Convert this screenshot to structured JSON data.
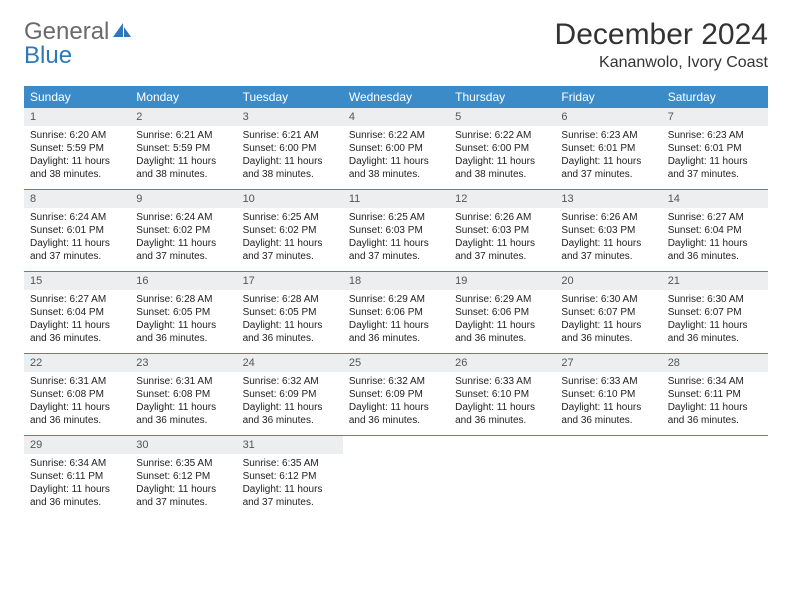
{
  "brand": {
    "part1": "General",
    "part2": "Blue"
  },
  "title": "December 2024",
  "location": "Kananwolo, Ivory Coast",
  "colors": {
    "header_bg": "#3b8bc9",
    "header_fg": "#ffffff",
    "daynum_bg": "#eceeef",
    "row_divider": "#3b8bc9",
    "brand_gray": "#6a6a6a",
    "brand_blue": "#2e77b8"
  },
  "dow": [
    "Sunday",
    "Monday",
    "Tuesday",
    "Wednesday",
    "Thursday",
    "Friday",
    "Saturday"
  ],
  "days": [
    {
      "n": "1",
      "sr": "6:20 AM",
      "ss": "5:59 PM",
      "dl": "11 hours and 38 minutes."
    },
    {
      "n": "2",
      "sr": "6:21 AM",
      "ss": "5:59 PM",
      "dl": "11 hours and 38 minutes."
    },
    {
      "n": "3",
      "sr": "6:21 AM",
      "ss": "6:00 PM",
      "dl": "11 hours and 38 minutes."
    },
    {
      "n": "4",
      "sr": "6:22 AM",
      "ss": "6:00 PM",
      "dl": "11 hours and 38 minutes."
    },
    {
      "n": "5",
      "sr": "6:22 AM",
      "ss": "6:00 PM",
      "dl": "11 hours and 38 minutes."
    },
    {
      "n": "6",
      "sr": "6:23 AM",
      "ss": "6:01 PM",
      "dl": "11 hours and 37 minutes."
    },
    {
      "n": "7",
      "sr": "6:23 AM",
      "ss": "6:01 PM",
      "dl": "11 hours and 37 minutes."
    },
    {
      "n": "8",
      "sr": "6:24 AM",
      "ss": "6:01 PM",
      "dl": "11 hours and 37 minutes."
    },
    {
      "n": "9",
      "sr": "6:24 AM",
      "ss": "6:02 PM",
      "dl": "11 hours and 37 minutes."
    },
    {
      "n": "10",
      "sr": "6:25 AM",
      "ss": "6:02 PM",
      "dl": "11 hours and 37 minutes."
    },
    {
      "n": "11",
      "sr": "6:25 AM",
      "ss": "6:03 PM",
      "dl": "11 hours and 37 minutes."
    },
    {
      "n": "12",
      "sr": "6:26 AM",
      "ss": "6:03 PM",
      "dl": "11 hours and 37 minutes."
    },
    {
      "n": "13",
      "sr": "6:26 AM",
      "ss": "6:03 PM",
      "dl": "11 hours and 37 minutes."
    },
    {
      "n": "14",
      "sr": "6:27 AM",
      "ss": "6:04 PM",
      "dl": "11 hours and 36 minutes."
    },
    {
      "n": "15",
      "sr": "6:27 AM",
      "ss": "6:04 PM",
      "dl": "11 hours and 36 minutes."
    },
    {
      "n": "16",
      "sr": "6:28 AM",
      "ss": "6:05 PM",
      "dl": "11 hours and 36 minutes."
    },
    {
      "n": "17",
      "sr": "6:28 AM",
      "ss": "6:05 PM",
      "dl": "11 hours and 36 minutes."
    },
    {
      "n": "18",
      "sr": "6:29 AM",
      "ss": "6:06 PM",
      "dl": "11 hours and 36 minutes."
    },
    {
      "n": "19",
      "sr": "6:29 AM",
      "ss": "6:06 PM",
      "dl": "11 hours and 36 minutes."
    },
    {
      "n": "20",
      "sr": "6:30 AM",
      "ss": "6:07 PM",
      "dl": "11 hours and 36 minutes."
    },
    {
      "n": "21",
      "sr": "6:30 AM",
      "ss": "6:07 PM",
      "dl": "11 hours and 36 minutes."
    },
    {
      "n": "22",
      "sr": "6:31 AM",
      "ss": "6:08 PM",
      "dl": "11 hours and 36 minutes."
    },
    {
      "n": "23",
      "sr": "6:31 AM",
      "ss": "6:08 PM",
      "dl": "11 hours and 36 minutes."
    },
    {
      "n": "24",
      "sr": "6:32 AM",
      "ss": "6:09 PM",
      "dl": "11 hours and 36 minutes."
    },
    {
      "n": "25",
      "sr": "6:32 AM",
      "ss": "6:09 PM",
      "dl": "11 hours and 36 minutes."
    },
    {
      "n": "26",
      "sr": "6:33 AM",
      "ss": "6:10 PM",
      "dl": "11 hours and 36 minutes."
    },
    {
      "n": "27",
      "sr": "6:33 AM",
      "ss": "6:10 PM",
      "dl": "11 hours and 36 minutes."
    },
    {
      "n": "28",
      "sr": "6:34 AM",
      "ss": "6:11 PM",
      "dl": "11 hours and 36 minutes."
    },
    {
      "n": "29",
      "sr": "6:34 AM",
      "ss": "6:11 PM",
      "dl": "11 hours and 36 minutes."
    },
    {
      "n": "30",
      "sr": "6:35 AM",
      "ss": "6:12 PM",
      "dl": "11 hours and 37 minutes."
    },
    {
      "n": "31",
      "sr": "6:35 AM",
      "ss": "6:12 PM",
      "dl": "11 hours and 37 minutes."
    }
  ],
  "labels": {
    "sunrise": "Sunrise:",
    "sunset": "Sunset:",
    "daylight": "Daylight:"
  },
  "layout": {
    "first_weekday_offset": 0,
    "total_cells": 35
  }
}
